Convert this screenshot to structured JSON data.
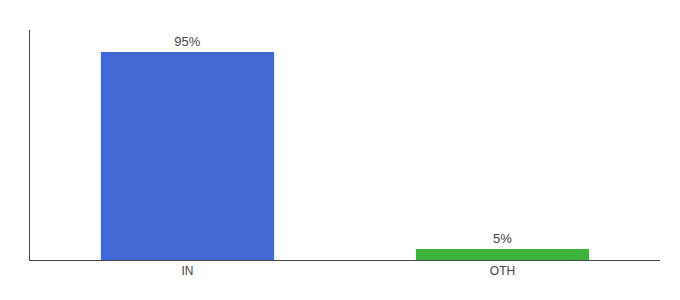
{
  "chart_data": {
    "type": "bar",
    "categories": [
      "IN",
      "OTH"
    ],
    "values": [
      95,
      5
    ],
    "value_labels": [
      "95%",
      "5%"
    ],
    "colors": [
      "#4169d4",
      "#3db53d"
    ],
    "data_labels": true,
    "ylim": [
      0,
      105
    ],
    "grid": false,
    "tick_labels": "x"
  }
}
